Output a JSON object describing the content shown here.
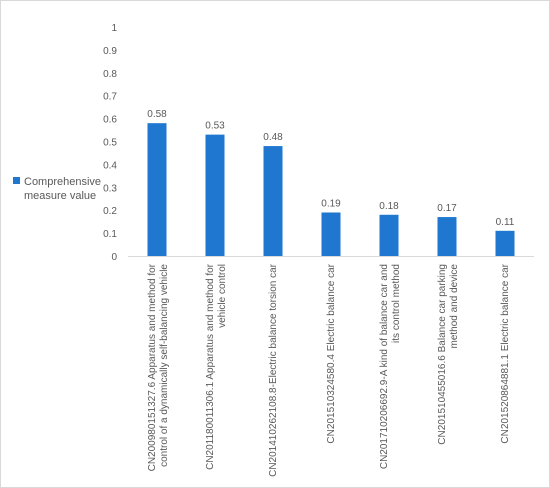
{
  "chart_data": {
    "type": "bar",
    "categories": [
      [
        "CN200980151327.6 Apparatus and method for",
        "control of a dynamically self-balancing vehicle"
      ],
      [
        "CN201180011306.1 Apparatus and method for",
        "vehicle control"
      ],
      [
        "CN201410262108.8-Electric balance torsion car"
      ],
      [
        "CN201510324580.4 Electric balance car"
      ],
      [
        "CN201710206692.9-A kind of balance car and",
        "its control method"
      ],
      [
        "CN201510455016.6 Balance car parking",
        "method and device"
      ],
      [
        "CN201520864881.1 Electric balance car"
      ]
    ],
    "series": [
      {
        "name": "Comprehensive measure value",
        "values": [
          0.58,
          0.53,
          0.48,
          0.19,
          0.18,
          0.17,
          0.11
        ],
        "color": "#1f77d0"
      }
    ],
    "data_labels": [
      "0.58",
      "0.53",
      "0.48",
      "0.19",
      "0.18",
      "0.17",
      "0.11"
    ],
    "ylim": [
      0,
      1
    ],
    "yticks": [
      "0",
      "0.1",
      "0.2",
      "0.3",
      "0.4",
      "0.5",
      "0.6",
      "0.7",
      "0.8",
      "0.9",
      "1"
    ],
    "grid": false,
    "legend_position": "left",
    "legend_lines": [
      "Comprehensive",
      "measure value"
    ]
  }
}
